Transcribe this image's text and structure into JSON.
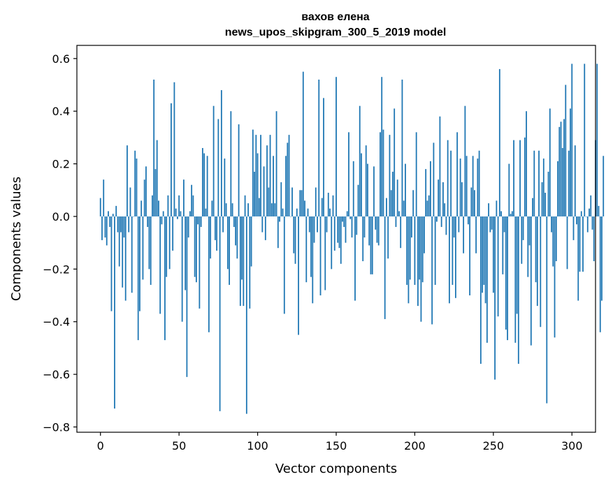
{
  "chart_data": {
    "type": "bar",
    "title_line1": "вахов елена",
    "title_line2": "news_upos_skipgram_300_5_2019 model",
    "xlabel": "Vector components",
    "ylabel": "Components values",
    "xlim": [
      -15,
      315
    ],
    "ylim": [
      -0.82,
      0.65
    ],
    "xticks": [
      0,
      50,
      100,
      150,
      200,
      250,
      300
    ],
    "xtick_labels": [
      "0",
      "50",
      "100",
      "150",
      "200",
      "250",
      "300"
    ],
    "yticks": [
      -0.8,
      -0.6,
      -0.4,
      -0.2,
      0.0,
      0.2,
      0.4,
      0.6
    ],
    "ytick_labels": [
      "−0.8",
      "−0.6",
      "−0.4",
      "−0.2",
      "0.0",
      "0.2",
      "0.4",
      "0.6"
    ],
    "bar_color": "#1f77b4",
    "values": [
      0.07,
      -0.09,
      0.14,
      -0.08,
      -0.11,
      0.02,
      -0.04,
      -0.36,
      0.01,
      -0.73,
      0.04,
      -0.06,
      -0.19,
      -0.06,
      -0.27,
      -0.08,
      -0.32,
      0.27,
      -0.06,
      0.11,
      -0.29,
      0.0,
      0.25,
      0.22,
      -0.47,
      -0.36,
      0.06,
      -0.24,
      0.14,
      0.19,
      -0.04,
      -0.2,
      -0.26,
      0.08,
      0.52,
      0.18,
      0.29,
      0.06,
      -0.37,
      -0.03,
      0.02,
      -0.47,
      -0.23,
      0.08,
      -0.2,
      0.43,
      -0.13,
      0.51,
      0.03,
      -0.01,
      0.08,
      0.02,
      -0.4,
      0.14,
      -0.28,
      -0.61,
      -0.08,
      0.02,
      0.12,
      0.08,
      -0.23,
      -0.25,
      -0.03,
      -0.35,
      -0.04,
      0.26,
      0.24,
      0.03,
      0.23,
      -0.44,
      -0.16,
      0.06,
      0.42,
      -0.09,
      -0.13,
      0.37,
      -0.74,
      0.48,
      -0.06,
      0.22,
      0.05,
      -0.2,
      -0.26,
      0.4,
      0.05,
      -0.04,
      -0.11,
      -0.16,
      0.35,
      -0.34,
      -0.24,
      -0.34,
      0.08,
      -0.75,
      0.05,
      -0.35,
      -0.19,
      0.33,
      0.17,
      0.31,
      0.24,
      0.07,
      0.31,
      -0.06,
      0.19,
      -0.09,
      0.27,
      0.11,
      0.31,
      0.05,
      0.23,
      0.05,
      0.4,
      -0.12,
      -0.02,
      0.13,
      0.03,
      -0.37,
      0.23,
      0.28,
      0.31,
      0.0,
      0.11,
      -0.14,
      -0.18,
      0.03,
      -0.45,
      0.1,
      0.1,
      0.55,
      0.06,
      -0.25,
      0.03,
      -0.06,
      -0.23,
      -0.33,
      -0.1,
      0.11,
      -0.06,
      0.52,
      -0.3,
      0.07,
      0.45,
      -0.28,
      -0.06,
      0.09,
      0.03,
      -0.2,
      0.08,
      -0.13,
      0.53,
      -0.1,
      -0.12,
      -0.18,
      -0.02,
      -0.04,
      -0.1,
      0.02,
      0.32,
      -0.01,
      -0.08,
      0.21,
      -0.32,
      -0.07,
      0.12,
      0.42,
      0.24,
      -0.17,
      -0.08,
      0.27,
      0.2,
      -0.11,
      -0.22,
      -0.22,
      0.19,
      -0.05,
      -0.1,
      -0.11,
      0.32,
      0.53,
      0.33,
      -0.39,
      0.07,
      -0.16,
      0.31,
      0.1,
      0.17,
      0.41,
      -0.04,
      0.14,
      0.02,
      -0.12,
      0.52,
      0.06,
      0.2,
      -0.26,
      -0.33,
      -0.24,
      -0.08,
      0.1,
      -0.26,
      0.32,
      -0.34,
      -0.24,
      -0.4,
      -0.25,
      -0.14,
      0.18,
      0.06,
      0.08,
      0.21,
      -0.41,
      0.28,
      -0.26,
      -0.02,
      0.14,
      0.38,
      -0.04,
      0.13,
      0.05,
      -0.07,
      0.29,
      -0.33,
      0.25,
      -0.26,
      -0.08,
      -0.31,
      0.32,
      -0.06,
      0.22,
      0.13,
      -0.14,
      0.42,
      0.23,
      -0.03,
      -0.3,
      0.11,
      0.23,
      0.1,
      -0.14,
      0.22,
      0.25,
      -0.56,
      -0.29,
      -0.26,
      -0.33,
      -0.48,
      0.05,
      -0.06,
      -0.05,
      -0.29,
      -0.62,
      0.06,
      -0.38,
      0.56,
      0.02,
      -0.22,
      -0.06,
      -0.43,
      -0.47,
      0.2,
      0.01,
      0.02,
      0.29,
      -0.48,
      -0.37,
      -0.56,
      0.29,
      -0.18,
      -0.09,
      0.3,
      0.4,
      -0.23,
      -0.11,
      -0.49,
      0.07,
      0.25,
      -0.25,
      -0.34,
      0.25,
      -0.42,
      0.13,
      0.22,
      0.09,
      -0.71,
      0.17,
      0.41,
      -0.06,
      -0.19,
      -0.46,
      -0.17,
      0.21,
      0.34,
      0.36,
      0.26,
      0.37,
      0.5,
      -0.2,
      0.25,
      0.41,
      0.58,
      -0.09,
      0.27,
      -0.03,
      -0.32,
      -0.21,
      0.02,
      -0.21,
      0.58,
      0.0,
      -0.06,
      0.03,
      0.08,
      -0.05,
      -0.17,
      0.29,
      0.58,
      0.04,
      -0.44,
      -0.32,
      0.23
    ]
  }
}
